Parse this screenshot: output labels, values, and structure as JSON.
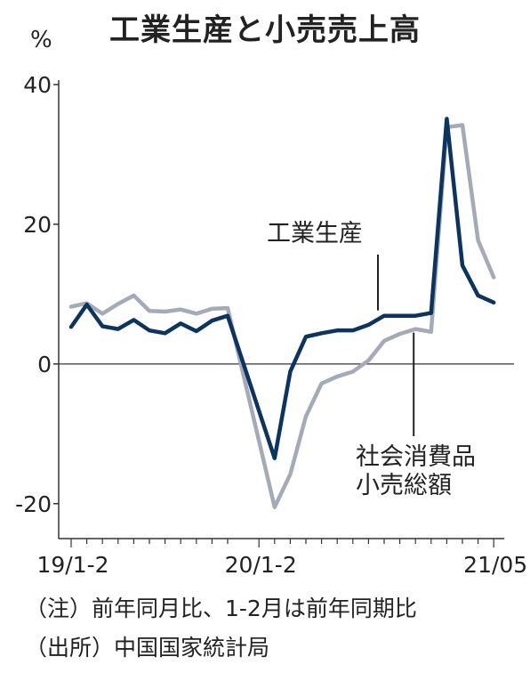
{
  "header": {
    "title": "工業生産と小売売上高",
    "unit": "%"
  },
  "notes": {
    "note1": "（注）前年同月比、1-2月は前年同期比",
    "note2": "（出所）中国国家統計局"
  },
  "chart_data": {
    "type": "line",
    "title": "工業生産と小売売上高",
    "ylabel": "%",
    "ylim": [
      -25,
      40
    ],
    "yticks": [
      40,
      20,
      0,
      -20
    ],
    "xtick_labels": [
      {
        "label": "19/1-2",
        "index": 0
      },
      {
        "label": "20/1-2",
        "index": 12
      },
      {
        "label": "21/05",
        "index": 27
      }
    ],
    "x_count": 28,
    "grid": false,
    "zero_line": true,
    "series": [
      {
        "name": "工業生産",
        "color": "#0b3560",
        "values": [
          5.3,
          8.5,
          5.4,
          5.0,
          6.3,
          4.8,
          4.4,
          5.8,
          4.7,
          6.2,
          6.9,
          null,
          null,
          -13.5,
          -1.1,
          3.9,
          4.4,
          4.8,
          4.8,
          5.6,
          6.9,
          6.9,
          6.9,
          7.3,
          35.1,
          14.1,
          9.8,
          8.8
        ]
      },
      {
        "name": "社会消費品小売総額",
        "color": "#a4aab7",
        "values": [
          8.2,
          8.7,
          7.2,
          8.6,
          9.8,
          7.6,
          7.5,
          7.8,
          7.2,
          7.9,
          8.0,
          null,
          null,
          -20.5,
          -15.8,
          -7.5,
          -2.8,
          -1.8,
          -1.1,
          0.5,
          3.3,
          4.3,
          5.0,
          4.6,
          33.9,
          34.2,
          17.7,
          12.4
        ]
      }
    ],
    "annotations": [
      {
        "text": "工業生産",
        "series": "工業生産",
        "index": 20
      },
      {
        "text_lines": [
          "社会消費品",
          "小売総額"
        ],
        "series": "社会消費品小売総額",
        "index": 22
      }
    ]
  }
}
